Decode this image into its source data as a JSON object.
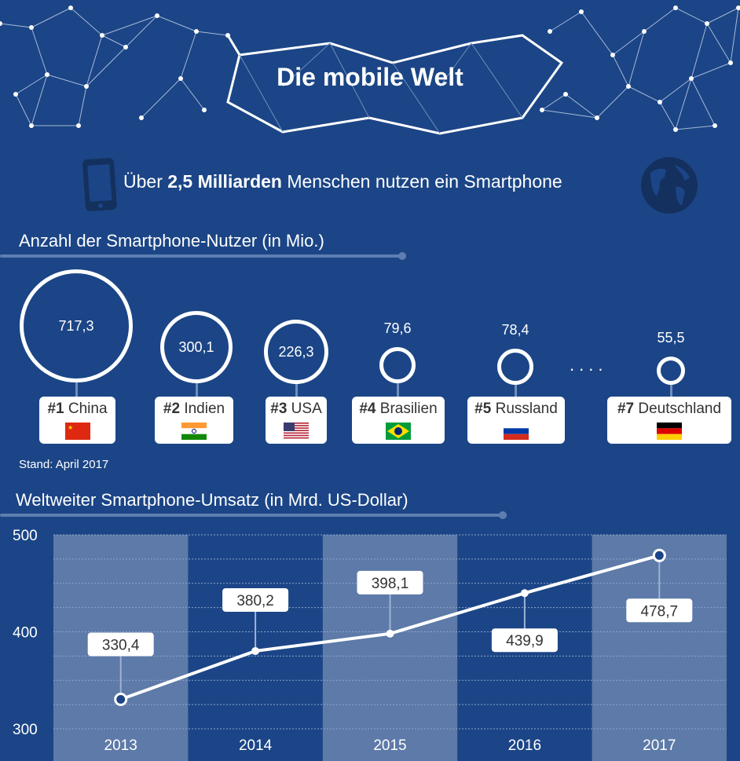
{
  "header": {
    "title": "Die mobile Welt",
    "tagline_pre": "Über ",
    "tagline_bold": "2,5 Milliarden",
    "tagline_post": " Menschen nutzen ein Smartphone",
    "icons": [
      "smartphone-icon",
      "globe-icon"
    ]
  },
  "users_section": {
    "title": "Anzahl der Smartphone-Nutzer (in Mio.)",
    "source": "Stand: April 2017",
    "ellipsis": "....",
    "countries": [
      {
        "rank": "#1",
        "name": "China",
        "value": "717,3",
        "flag": "china"
      },
      {
        "rank": "#2",
        "name": "Indien",
        "value": "300,1",
        "flag": "india"
      },
      {
        "rank": "#3",
        "name": "USA",
        "value": "226,3",
        "flag": "usa"
      },
      {
        "rank": "#4",
        "name": "Brasilien",
        "value": "79,6",
        "flag": "brazil"
      },
      {
        "rank": "#5",
        "name": "Russland",
        "value": "78,4",
        "flag": "russia"
      },
      {
        "rank": "#7",
        "name": "Deutschland",
        "value": "55,5",
        "flag": "germany"
      }
    ]
  },
  "chart_data": {
    "type": "line",
    "title": "Weltweiter Smartphone-Umsatz (in Mrd. US-Dollar)",
    "categories": [
      "2013",
      "2014",
      "2015",
      "2016",
      "2017"
    ],
    "values": [
      330.4,
      380.2,
      398.1,
      439.9,
      478.7
    ],
    "labels": [
      "330,4",
      "380,2",
      "398,1",
      "439,9",
      "478,7"
    ],
    "ylim": [
      300,
      500
    ],
    "yticks": [
      "300",
      "400",
      "500"
    ],
    "grid": true,
    "colors": {
      "background": "#1b4586",
      "band": "#5d7aa8",
      "line": "#ffffff"
    }
  }
}
